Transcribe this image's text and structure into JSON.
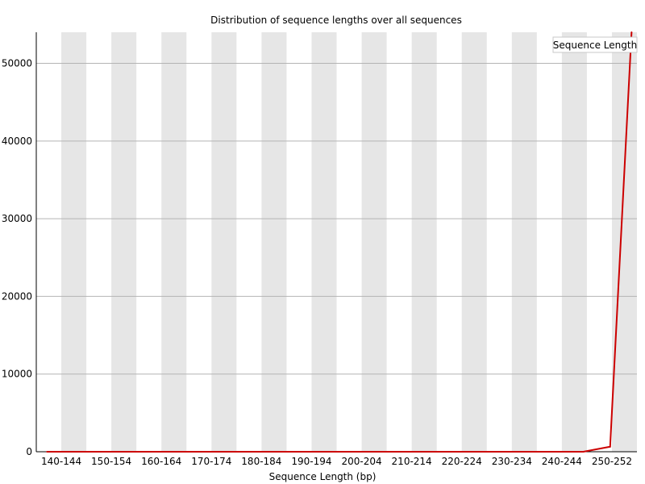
{
  "chart_data": {
    "type": "line",
    "title": "Distribution of sequence lengths over all sequences",
    "xlabel": "Sequence Length (bp)",
    "ylabel": "",
    "ylim": [
      0,
      54000
    ],
    "y_ticks": [
      0,
      10000,
      20000,
      30000,
      40000,
      50000
    ],
    "y_tick_labels": [
      "0",
      "10000",
      "20000",
      "30000",
      "40000",
      "50000"
    ],
    "x_tick_labels": [
      "140-144",
      "150-154",
      "160-164",
      "170-174",
      "180-184",
      "190-194",
      "200-204",
      "210-214",
      "220-224",
      "230-234",
      "240-244",
      "250-252"
    ],
    "grid": true,
    "legend_position": "top-right",
    "series": [
      {
        "name": "Sequence Length",
        "color": "#cc0000",
        "x": [
          142,
          147,
          152,
          157,
          162,
          167,
          172,
          177,
          182,
          187,
          192,
          197,
          202,
          207,
          212,
          217,
          222,
          227,
          232,
          237,
          242,
          247,
          251
        ],
        "values": [
          0,
          0,
          0,
          0,
          0,
          0,
          0,
          0,
          0,
          0,
          0,
          0,
          0,
          0,
          0,
          0,
          0,
          0,
          0,
          0,
          0,
          650,
          54000
        ]
      }
    ]
  }
}
